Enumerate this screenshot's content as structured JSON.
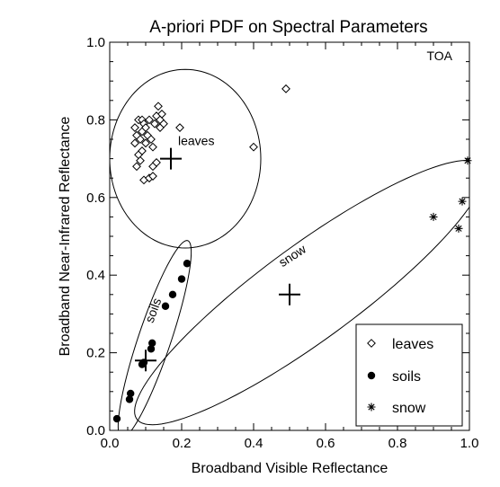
{
  "chart_data": {
    "type": "scatter",
    "title": "A-priori PDF on Spectral Parameters",
    "xlabel": "Broadband Visible Reflectance",
    "ylabel": "Broadband Near-Infrared Reflectance",
    "xlim": [
      0.0,
      1.0
    ],
    "ylim": [
      0.0,
      1.0
    ],
    "xticks": [
      0.0,
      0.2,
      0.4,
      0.6,
      0.8,
      1.0
    ],
    "yticks": [
      0.0,
      0.2,
      0.4,
      0.6,
      0.8,
      1.0
    ],
    "xtick_labels": [
      "0.0",
      "0.2",
      "0.4",
      "0.6",
      "0.8",
      "1.0"
    ],
    "ytick_labels": [
      "0.0",
      "0.2",
      "0.4",
      "0.6",
      "0.8",
      "1.0"
    ],
    "corner_label": "TOA",
    "grid": false,
    "legend_position": "bottom-right",
    "series": [
      {
        "name": "leaves",
        "marker": "diamond",
        "points": [
          [
            0.07,
            0.78
          ],
          [
            0.08,
            0.8
          ],
          [
            0.09,
            0.8
          ],
          [
            0.075,
            0.76
          ],
          [
            0.085,
            0.75
          ],
          [
            0.09,
            0.77
          ],
          [
            0.095,
            0.79
          ],
          [
            0.1,
            0.74
          ],
          [
            0.105,
            0.76
          ],
          [
            0.1,
            0.78
          ],
          [
            0.11,
            0.8
          ],
          [
            0.115,
            0.75
          ],
          [
            0.12,
            0.73
          ],
          [
            0.125,
            0.79
          ],
          [
            0.13,
            0.81
          ],
          [
            0.135,
            0.835
          ],
          [
            0.14,
            0.8
          ],
          [
            0.14,
            0.78
          ],
          [
            0.145,
            0.815
          ],
          [
            0.15,
            0.79
          ],
          [
            0.08,
            0.71
          ],
          [
            0.09,
            0.72
          ],
          [
            0.075,
            0.68
          ],
          [
            0.085,
            0.695
          ],
          [
            0.12,
            0.68
          ],
          [
            0.13,
            0.69
          ],
          [
            0.095,
            0.645
          ],
          [
            0.11,
            0.65
          ],
          [
            0.12,
            0.655
          ],
          [
            0.07,
            0.74
          ],
          [
            0.195,
            0.78
          ],
          [
            0.4,
            0.73
          ],
          [
            0.49,
            0.88
          ]
        ]
      },
      {
        "name": "soils",
        "marker": "dot",
        "points": [
          [
            0.02,
            0.03
          ],
          [
            0.055,
            0.08
          ],
          [
            0.058,
            0.095
          ],
          [
            0.09,
            0.17
          ],
          [
            0.095,
            0.175
          ],
          [
            0.115,
            0.21
          ],
          [
            0.118,
            0.225
          ],
          [
            0.155,
            0.32
          ],
          [
            0.175,
            0.35
          ],
          [
            0.2,
            0.39
          ],
          [
            0.215,
            0.43
          ]
        ]
      },
      {
        "name": "snow",
        "marker": "asterisk",
        "points": [
          [
            0.9,
            0.55
          ],
          [
            0.97,
            0.52
          ],
          [
            0.98,
            0.59
          ],
          [
            0.995,
            0.695
          ]
        ]
      }
    ],
    "cluster_centers": [
      {
        "name": "leaves",
        "x": 0.17,
        "y": 0.7
      },
      {
        "name": "soils",
        "x": 0.1,
        "y": 0.18
      },
      {
        "name": "snow",
        "x": 0.5,
        "y": 0.35
      }
    ],
    "ellipses": [
      {
        "name": "leaves",
        "cx": 0.21,
        "cy": 0.7,
        "rx": 0.21,
        "ry": 0.23,
        "angle_deg": 0
      },
      {
        "name": "soils",
        "cx": 0.125,
        "cy": 0.235,
        "rx": 0.27,
        "ry": 0.045,
        "angle_deg": 70
      },
      {
        "name": "snow",
        "cx": 0.555,
        "cy": 0.355,
        "rx": 0.58,
        "ry": 0.125,
        "angle_deg": 34
      }
    ],
    "annotations": [
      {
        "text": "leaves",
        "x": 0.19,
        "y": 0.735
      },
      {
        "text": "soils",
        "x": 0.12,
        "y": 0.275,
        "rotate_deg": -70
      },
      {
        "text": "snow",
        "x": 0.48,
        "y": 0.42,
        "rotate_deg": -33
      }
    ]
  }
}
